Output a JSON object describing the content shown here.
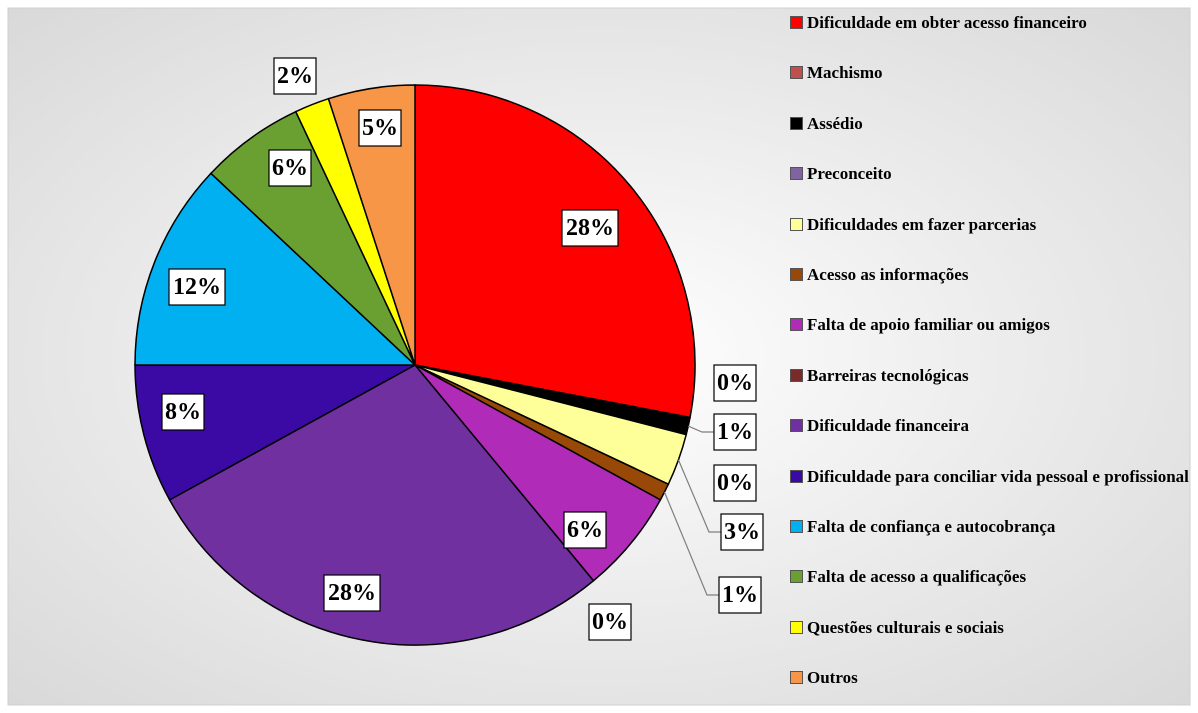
{
  "chart_data": {
    "type": "pie",
    "categories": [
      "Dificuldade em obter acesso financeiro",
      "Machismo",
      "Assédio",
      "Preconceito",
      "Dificuldades em fazer parcerias",
      "Acesso as informações",
      "Falta de apoio familiar ou amigos",
      "Barreiras tecnológicas",
      "Dificuldade financeira",
      "Dificuldade para conciliar vida pessoal e profissional",
      "Falta de confiança e autocobrança",
      "Falta de acesso a qualificações",
      "Questões culturais e sociais",
      "Outros"
    ],
    "values": [
      28,
      0,
      1,
      0,
      3,
      1,
      6,
      0,
      28,
      8,
      12,
      6,
      2,
      5
    ],
    "value_labels": [
      "28%",
      "0%",
      "1%",
      "0%",
      "3%",
      "1%",
      "6%",
      "0%",
      "28%",
      "8%",
      "12%",
      "6%",
      "2%",
      "5%"
    ],
    "colors": [
      "#ff0000",
      "#c0504d",
      "#000000",
      "#8064a2",
      "#ffff99",
      "#984807",
      "#b02cb8",
      "#7b2a2a",
      "#7030a0",
      "#3b0aa5",
      "#00b0f0",
      "#6aa032",
      "#ffff00",
      "#f79646"
    ],
    "legend": "right"
  }
}
